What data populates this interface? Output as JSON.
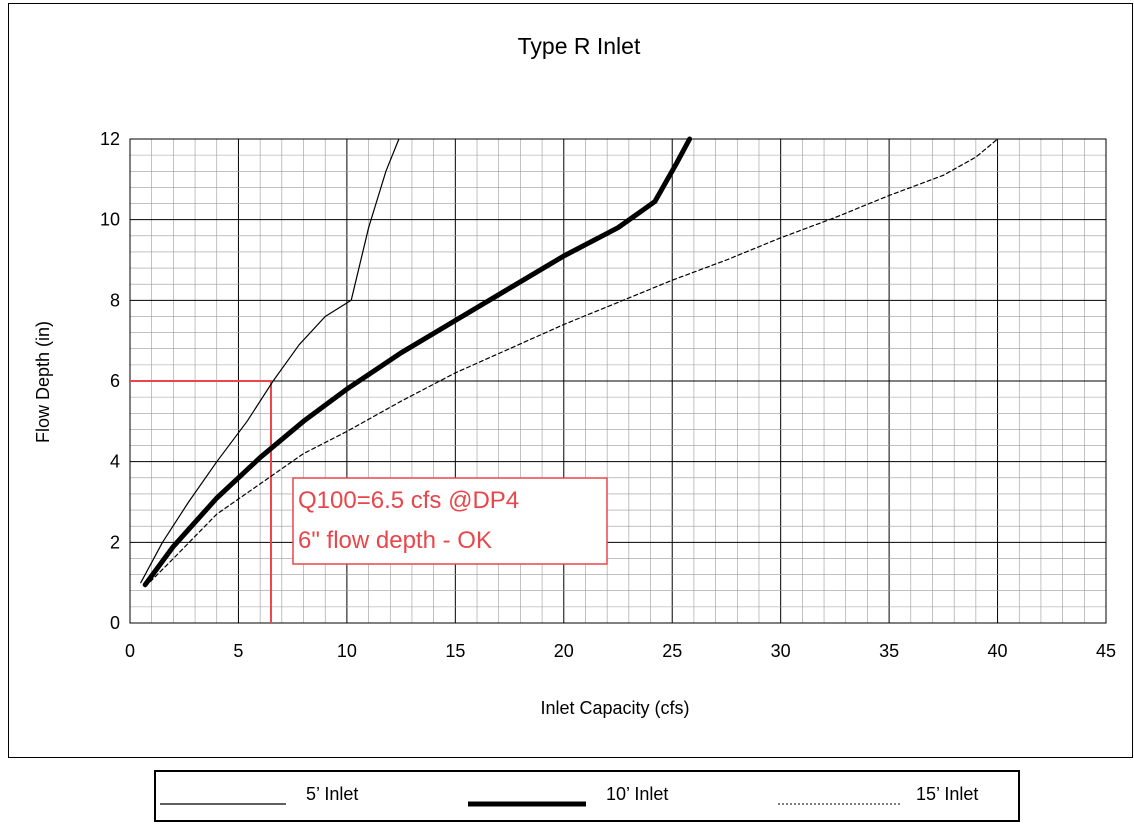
{
  "chart_data": {
    "type": "line",
    "title": "Type R Inlet",
    "xlabel": "Inlet Capacity (cfs)",
    "ylabel": "Flow Depth (in)",
    "xlim": [
      0,
      45
    ],
    "ylim": [
      0,
      12
    ],
    "x_ticks": [
      "0",
      "5",
      "10",
      "15",
      "20",
      "25",
      "30",
      "35",
      "40",
      "45"
    ],
    "y_ticks": [
      "0",
      "2",
      "4",
      "6",
      "8",
      "10",
      "12"
    ],
    "grid": true,
    "legend": "bottom",
    "series": [
      {
        "name": "5’ Inlet",
        "style": "thin-solid",
        "color": "#000000",
        "points": [
          [
            0.5,
            1.0
          ],
          [
            1.5,
            2.0
          ],
          [
            2.7,
            3.0
          ],
          [
            4.0,
            4.0
          ],
          [
            5.4,
            5.0
          ],
          [
            6.6,
            6.0
          ],
          [
            7.8,
            6.9
          ],
          [
            9.0,
            7.6
          ],
          [
            10.2,
            8.0
          ],
          [
            11.0,
            9.8
          ],
          [
            11.8,
            11.2
          ],
          [
            12.4,
            12.0
          ]
        ]
      },
      {
        "name": "10’ Inlet",
        "style": "thick-solid",
        "color": "#000000",
        "points": [
          [
            0.7,
            0.95
          ],
          [
            2.0,
            1.9
          ],
          [
            4.0,
            3.1
          ],
          [
            6.0,
            4.1
          ],
          [
            8.0,
            5.0
          ],
          [
            10.0,
            5.8
          ],
          [
            12.5,
            6.7
          ],
          [
            15.0,
            7.5
          ],
          [
            17.5,
            8.3
          ],
          [
            20.0,
            9.1
          ],
          [
            22.5,
            9.8
          ],
          [
            24.2,
            10.45
          ],
          [
            25.2,
            11.4
          ],
          [
            25.8,
            12.0
          ]
        ]
      },
      {
        "name": "15’ Inlet",
        "style": "dashed",
        "color": "#000000",
        "points": [
          [
            0.7,
            0.9
          ],
          [
            2.0,
            1.6
          ],
          [
            4.0,
            2.7
          ],
          [
            6.0,
            3.45
          ],
          [
            8.0,
            4.2
          ],
          [
            10.0,
            4.75
          ],
          [
            12.5,
            5.5
          ],
          [
            15.0,
            6.2
          ],
          [
            17.5,
            6.8
          ],
          [
            20.0,
            7.4
          ],
          [
            22.5,
            7.95
          ],
          [
            25.0,
            8.5
          ],
          [
            27.5,
            9.0
          ],
          [
            30.0,
            9.55
          ],
          [
            32.5,
            10.05
          ],
          [
            35.0,
            10.6
          ],
          [
            37.5,
            11.1
          ],
          [
            39.0,
            11.55
          ],
          [
            40.0,
            12.0
          ]
        ]
      }
    ],
    "annotation": {
      "text_lines": [
        "Q100=6.5 cfs @DP4",
        "6\" flow depth - OK"
      ],
      "color": "#e8464a",
      "guide_x": 6.5,
      "guide_y": 6
    }
  }
}
